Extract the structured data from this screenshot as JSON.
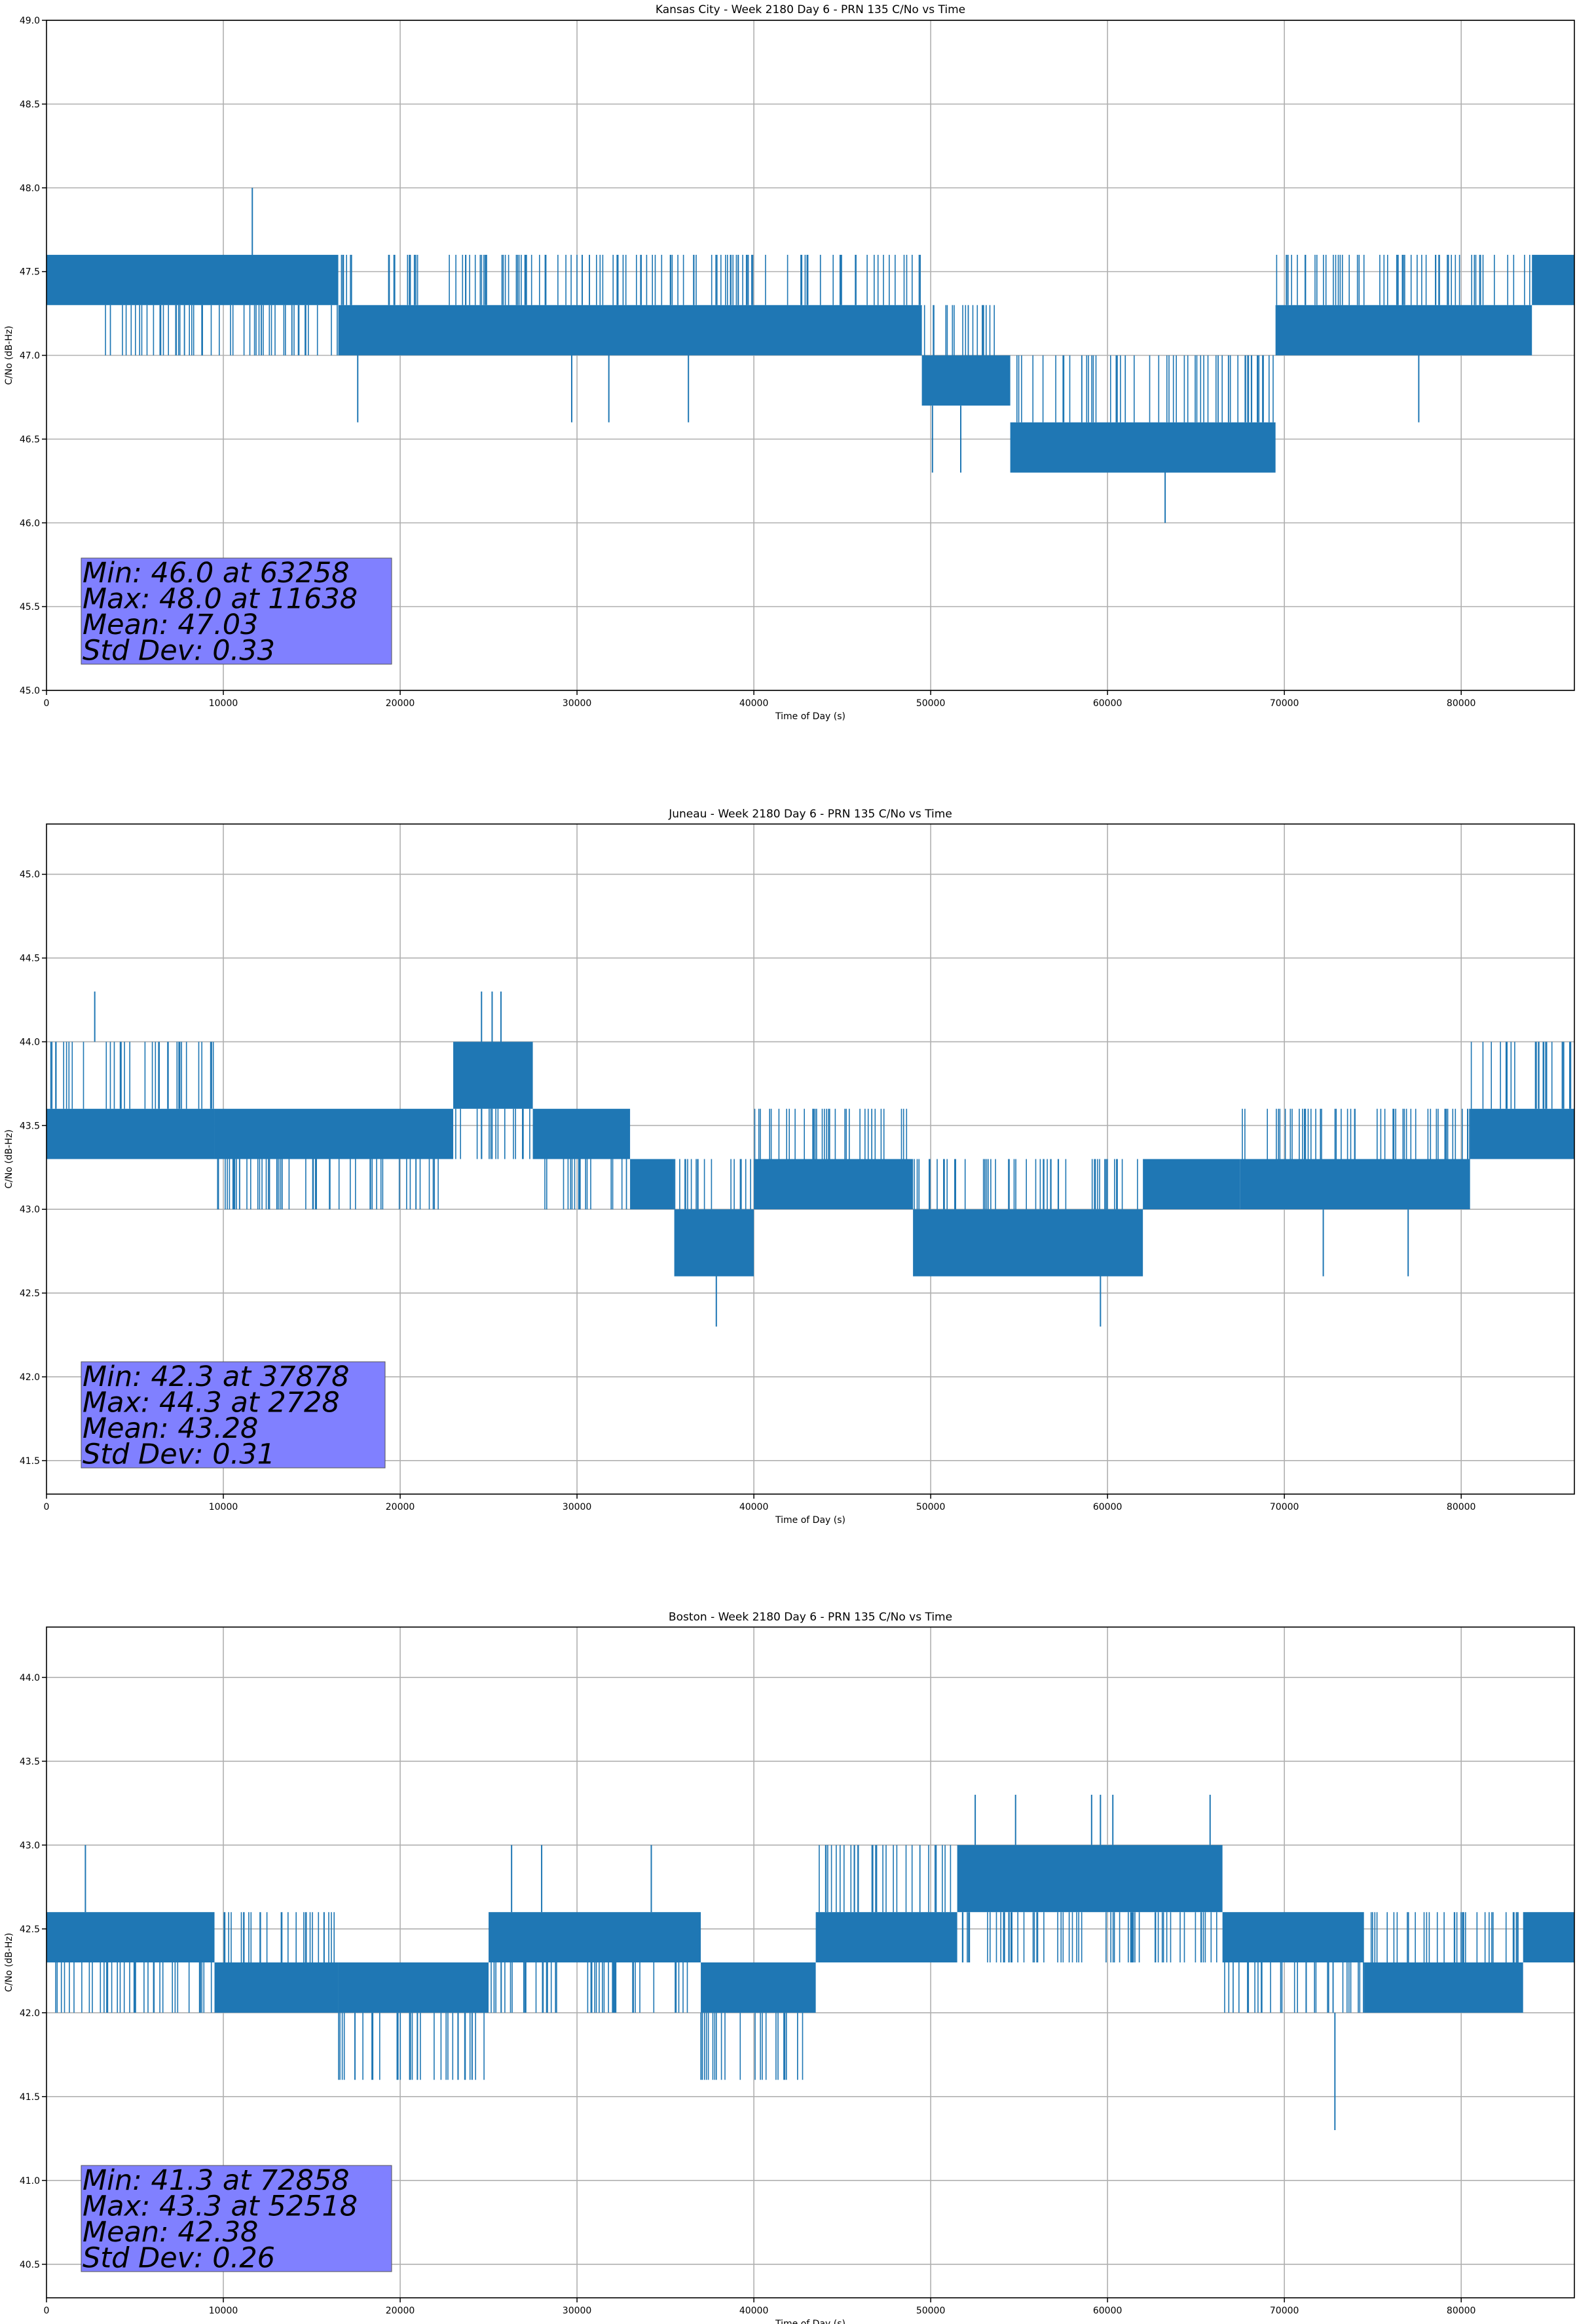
{
  "figure": {
    "series_color": "#1f77b4",
    "stats_box_color": "#8080ff"
  },
  "chart_data": [
    {
      "type": "line",
      "title": "Kansas City - Week 2180 Day 6 - PRN 135 C/No vs Time",
      "xlabel": "Time of Day (s)",
      "ylabel": "C/No (dB-Hz)",
      "xlim": [
        0,
        86400
      ],
      "ylim": [
        45.0,
        49.0
      ],
      "grid": true,
      "xticks": [
        0,
        10000,
        20000,
        30000,
        40000,
        50000,
        60000,
        70000,
        80000
      ],
      "xtick_labels": [
        "0",
        "10000",
        "20000",
        "30000",
        "40000",
        "50000",
        "60000",
        "70000",
        "80000"
      ],
      "yticks": [
        45.0,
        45.5,
        46.0,
        46.5,
        47.0,
        47.5,
        48.0,
        48.5,
        49.0
      ],
      "ytick_labels": [
        "45.0",
        "45.5",
        "46.0",
        "46.5",
        "47.0",
        "47.5",
        "48.0",
        "48.5",
        "49.0"
      ],
      "series": [
        {
          "name": "C/No",
          "segments": [
            {
              "x0": 0,
              "x1": 2000,
              "lo": 47.3,
              "hi": 47.6
            },
            {
              "x0": 2000,
              "x1": 16500,
              "lo": 47.3,
              "hi": 47.6,
              "alt": 47.0,
              "flicker": true
            },
            {
              "x0": 16500,
              "x1": 49500,
              "lo": 47.0,
              "hi": 47.3,
              "alt": 47.6,
              "flicker": true
            },
            {
              "x0": 49500,
              "x1": 54500,
              "lo": 46.7,
              "hi": 47.0,
              "alt": 47.3,
              "flicker": true
            },
            {
              "x0": 54500,
              "x1": 69500,
              "lo": 46.3,
              "hi": 46.6,
              "alt": 47.0,
              "flicker": true
            },
            {
              "x0": 69500,
              "x1": 84000,
              "lo": 47.0,
              "hi": 47.3,
              "alt": 47.6,
              "flicker": true
            },
            {
              "x0": 84000,
              "x1": 86400,
              "lo": 47.3,
              "hi": 47.6
            }
          ],
          "spikes": [
            {
              "x": 11638,
              "y0": 47.6,
              "y1": 48.0
            },
            {
              "x": 17600,
              "y0": 47.0,
              "y1": 46.6
            },
            {
              "x": 29700,
              "y0": 47.0,
              "y1": 46.6
            },
            {
              "x": 31800,
              "y0": 47.0,
              "y1": 46.6
            },
            {
              "x": 36300,
              "y0": 47.0,
              "y1": 46.6
            },
            {
              "x": 50100,
              "y0": 46.7,
              "y1": 46.3
            },
            {
              "x": 51700,
              "y0": 46.7,
              "y1": 46.3
            },
            {
              "x": 63258,
              "y0": 46.3,
              "y1": 46.0
            },
            {
              "x": 77600,
              "y0": 47.0,
              "y1": 46.6
            }
          ]
        }
      ],
      "stats": [
        "Min: 46.0 at 63258",
        "Max: 48.0 at 11638",
        "Mean: 47.03",
        "Std Dev: 0.33"
      ]
    },
    {
      "type": "line",
      "title": "Juneau - Week 2180 Day 6 - PRN 135 C/No vs Time",
      "xlabel": "Time of Day (s)",
      "ylabel": "C/No (dB-Hz)",
      "xlim": [
        0,
        86400
      ],
      "ylim": [
        41.3,
        45.3
      ],
      "grid": true,
      "xticks": [
        0,
        10000,
        20000,
        30000,
        40000,
        50000,
        60000,
        70000,
        80000
      ],
      "xtick_labels": [
        "0",
        "10000",
        "20000",
        "30000",
        "40000",
        "50000",
        "60000",
        "70000",
        "80000"
      ],
      "yticks": [
        41.5,
        42.0,
        42.5,
        43.0,
        43.5,
        44.0,
        44.5,
        45.0
      ],
      "ytick_labels": [
        "41.5",
        "42.0",
        "42.5",
        "43.0",
        "43.5",
        "44.0",
        "44.5",
        "45.0"
      ],
      "series": [
        {
          "name": "C/No",
          "segments": [
            {
              "x0": 0,
              "x1": 9500,
              "lo": 43.3,
              "hi": 43.6,
              "alt": 44.0,
              "flicker": true
            },
            {
              "x0": 9500,
              "x1": 23000,
              "lo": 43.3,
              "hi": 43.6,
              "alt": 43.0,
              "flicker": true
            },
            {
              "x0": 23000,
              "x1": 27500,
              "lo": 43.6,
              "hi": 44.0,
              "alt": 43.3,
              "flicker": true
            },
            {
              "x0": 27500,
              "x1": 33000,
              "lo": 43.3,
              "hi": 43.6,
              "alt": 43.0,
              "flicker": true
            },
            {
              "x0": 33000,
              "x1": 35500,
              "lo": 43.0,
              "hi": 43.3
            },
            {
              "x0": 35500,
              "x1": 40000,
              "lo": 42.6,
              "hi": 43.0,
              "alt": 43.3,
              "flicker": true
            },
            {
              "x0": 40000,
              "x1": 49000,
              "lo": 43.0,
              "hi": 43.3,
              "alt": 43.6,
              "flicker": true
            },
            {
              "x0": 49000,
              "x1": 62000,
              "lo": 42.6,
              "hi": 43.0,
              "alt": 43.3,
              "flicker": true
            },
            {
              "x0": 62000,
              "x1": 67500,
              "lo": 43.0,
              "hi": 43.3
            },
            {
              "x0": 67500,
              "x1": 80500,
              "lo": 43.0,
              "hi": 43.3,
              "alt": 43.6,
              "flicker": true
            },
            {
              "x0": 80500,
              "x1": 86400,
              "lo": 43.3,
              "hi": 43.6,
              "alt": 44.0,
              "flicker": true
            }
          ],
          "spikes": [
            {
              "x": 2728,
              "y0": 44.0,
              "y1": 44.3
            },
            {
              "x": 24600,
              "y0": 44.0,
              "y1": 44.3
            },
            {
              "x": 25200,
              "y0": 44.0,
              "y1": 44.3
            },
            {
              "x": 25700,
              "y0": 44.0,
              "y1": 44.3
            },
            {
              "x": 37878,
              "y0": 42.6,
              "y1": 42.3
            },
            {
              "x": 59600,
              "y0": 42.6,
              "y1": 42.3
            },
            {
              "x": 72200,
              "y0": 43.0,
              "y1": 42.6
            },
            {
              "x": 77000,
              "y0": 43.0,
              "y1": 42.6
            }
          ]
        }
      ],
      "stats": [
        "Min: 42.3 at 37878",
        "Max: 44.3 at 2728",
        "Mean: 43.28",
        "Std Dev: 0.31"
      ]
    },
    {
      "type": "line",
      "title": "Boston - Week 2180 Day 6 - PRN 135 C/No vs Time",
      "xlabel": "Time of Day (s)",
      "ylabel": "C/No (dB-Hz)",
      "xlim": [
        0,
        86400
      ],
      "ylim": [
        40.3,
        44.3
      ],
      "grid": true,
      "xticks": [
        0,
        10000,
        20000,
        30000,
        40000,
        50000,
        60000,
        70000,
        80000
      ],
      "xtick_labels": [
        "0",
        "10000",
        "20000",
        "30000",
        "40000",
        "50000",
        "60000",
        "70000",
        "80000"
      ],
      "yticks": [
        40.5,
        41.0,
        41.5,
        42.0,
        42.5,
        43.0,
        43.5,
        44.0
      ],
      "ytick_labels": [
        "40.5",
        "41.0",
        "41.5",
        "42.0",
        "42.5",
        "43.0",
        "43.5",
        "44.0"
      ],
      "series": [
        {
          "name": "C/No",
          "segments": [
            {
              "x0": 0,
              "x1": 9500,
              "lo": 42.3,
              "hi": 42.6,
              "alt": 42.0,
              "flicker": true
            },
            {
              "x0": 9500,
              "x1": 16500,
              "lo": 42.0,
              "hi": 42.3,
              "alt": 42.6,
              "flicker": true
            },
            {
              "x0": 16500,
              "x1": 25000,
              "lo": 42.0,
              "hi": 42.3,
              "alt": 41.6,
              "flicker": true
            },
            {
              "x0": 25000,
              "x1": 37000,
              "lo": 42.3,
              "hi": 42.6,
              "alt": 42.0,
              "flicker": true
            },
            {
              "x0": 37000,
              "x1": 43500,
              "lo": 42.0,
              "hi": 42.3,
              "alt": 41.6,
              "flicker": true
            },
            {
              "x0": 43500,
              "x1": 51500,
              "lo": 42.3,
              "hi": 42.6,
              "alt": 43.0,
              "flicker": true
            },
            {
              "x0": 51500,
              "x1": 66500,
              "lo": 42.6,
              "hi": 43.0,
              "alt": 42.3,
              "flicker": true
            },
            {
              "x0": 66500,
              "x1": 74500,
              "lo": 42.3,
              "hi": 42.6,
              "alt": 42.0,
              "flicker": true
            },
            {
              "x0": 74500,
              "x1": 83500,
              "lo": 42.0,
              "hi": 42.3,
              "alt": 42.6,
              "flicker": true
            },
            {
              "x0": 83500,
              "x1": 86400,
              "lo": 42.3,
              "hi": 42.6
            }
          ],
          "spikes": [
            {
              "x": 2200,
              "y0": 42.6,
              "y1": 43.0
            },
            {
              "x": 26300,
              "y0": 42.6,
              "y1": 43.0
            },
            {
              "x": 28000,
              "y0": 42.6,
              "y1": 43.0
            },
            {
              "x": 34200,
              "y0": 42.6,
              "y1": 43.0
            },
            {
              "x": 52518,
              "y0": 43.0,
              "y1": 43.3
            },
            {
              "x": 54800,
              "y0": 43.0,
              "y1": 43.3
            },
            {
              "x": 59100,
              "y0": 43.0,
              "y1": 43.3
            },
            {
              "x": 59600,
              "y0": 43.0,
              "y1": 43.3
            },
            {
              "x": 60300,
              "y0": 43.0,
              "y1": 43.3
            },
            {
              "x": 65800,
              "y0": 43.0,
              "y1": 43.3
            },
            {
              "x": 72858,
              "y0": 42.0,
              "y1": 41.3
            }
          ]
        }
      ],
      "stats": [
        "Min: 41.3 at 72858",
        "Max: 43.3 at 52518",
        "Mean: 42.38",
        "Std Dev: 0.26"
      ]
    }
  ]
}
